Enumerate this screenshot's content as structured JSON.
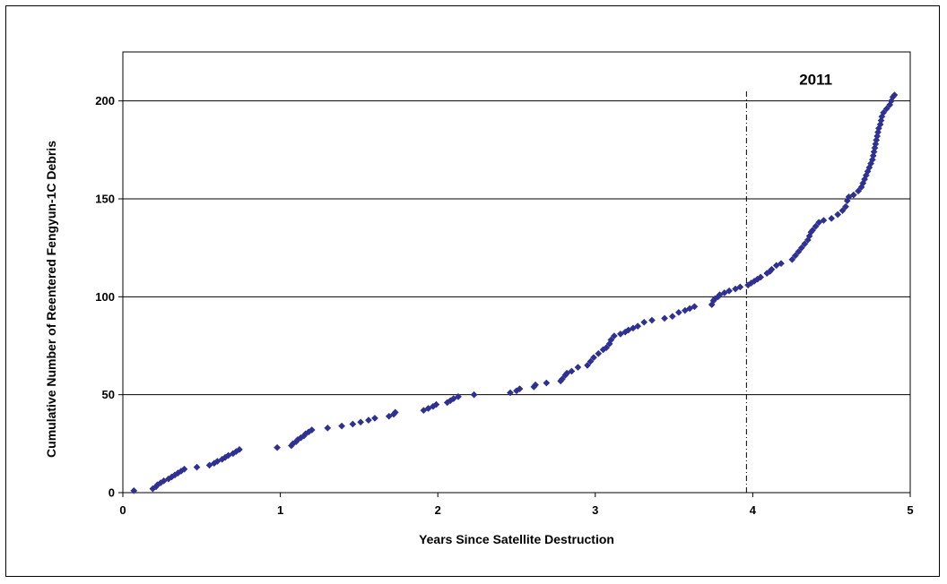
{
  "chart_data": {
    "type": "scatter",
    "title": "",
    "xlabel": "Years Since Satellite Destruction",
    "ylabel": "Cumulative Number of Reentered Fengyun-1C Debris",
    "xlim": [
      0,
      5
    ],
    "ylim": [
      0,
      225
    ],
    "x_ticks": [
      "0",
      "1",
      "2",
      "3",
      "4",
      "5"
    ],
    "y_ticks": [
      "0",
      "50",
      "100",
      "150",
      "200"
    ],
    "gridlines": "horizontal",
    "marker": "diamond",
    "marker_color": "#2e3192",
    "annotation": {
      "text": "2011",
      "x": 4.4,
      "y": 211
    },
    "reference_line": {
      "x": 3.96,
      "style": "dash-dot"
    },
    "series": [
      {
        "points": [
          [
            0.07,
            1
          ],
          [
            0.19,
            2
          ],
          [
            0.21,
            3
          ],
          [
            0.22,
            4
          ],
          [
            0.24,
            5
          ],
          [
            0.26,
            6
          ],
          [
            0.29,
            7
          ],
          [
            0.31,
            8
          ],
          [
            0.33,
            9
          ],
          [
            0.35,
            10
          ],
          [
            0.37,
            11
          ],
          [
            0.39,
            12
          ],
          [
            0.47,
            13
          ],
          [
            0.55,
            14
          ],
          [
            0.58,
            15
          ],
          [
            0.6,
            16
          ],
          [
            0.63,
            17
          ],
          [
            0.65,
            18
          ],
          [
            0.67,
            19
          ],
          [
            0.7,
            20
          ],
          [
            0.72,
            21
          ],
          [
            0.74,
            22
          ],
          [
            0.98,
            23
          ],
          [
            1.07,
            24
          ],
          [
            1.08,
            25
          ],
          [
            1.1,
            26
          ],
          [
            1.11,
            27
          ],
          [
            1.13,
            28
          ],
          [
            1.15,
            29
          ],
          [
            1.16,
            30
          ],
          [
            1.18,
            31
          ],
          [
            1.2,
            32
          ],
          [
            1.3,
            33
          ],
          [
            1.39,
            34
          ],
          [
            1.46,
            35
          ],
          [
            1.51,
            36
          ],
          [
            1.56,
            37
          ],
          [
            1.6,
            38
          ],
          [
            1.69,
            39
          ],
          [
            1.72,
            40
          ],
          [
            1.73,
            41
          ],
          [
            1.91,
            42
          ],
          [
            1.94,
            43
          ],
          [
            1.97,
            44
          ],
          [
            1.99,
            45
          ],
          [
            2.06,
            46
          ],
          [
            2.08,
            47
          ],
          [
            2.1,
            48
          ],
          [
            2.13,
            49
          ],
          [
            2.23,
            50
          ],
          [
            2.46,
            51
          ],
          [
            2.5,
            52
          ],
          [
            2.52,
            53
          ],
          [
            2.61,
            54
          ],
          [
            2.62,
            55
          ],
          [
            2.69,
            56
          ],
          [
            2.78,
            57
          ],
          [
            2.79,
            58
          ],
          [
            2.81,
            60
          ],
          [
            2.82,
            61
          ],
          [
            2.85,
            62
          ],
          [
            2.89,
            64
          ],
          [
            2.95,
            65
          ],
          [
            2.97,
            67
          ],
          [
            2.99,
            69
          ],
          [
            3.02,
            71
          ],
          [
            3.05,
            73
          ],
          [
            3.07,
            74
          ],
          [
            3.09,
            76
          ],
          [
            3.1,
            78
          ],
          [
            3.12,
            80
          ],
          [
            3.16,
            81
          ],
          [
            3.19,
            82
          ],
          [
            3.21,
            83
          ],
          [
            3.24,
            84
          ],
          [
            3.27,
            85
          ],
          [
            3.31,
            87
          ],
          [
            3.36,
            88
          ],
          [
            3.44,
            89
          ],
          [
            3.49,
            90
          ],
          [
            3.53,
            92
          ],
          [
            3.57,
            93
          ],
          [
            3.6,
            94
          ],
          [
            3.63,
            95
          ],
          [
            3.74,
            96
          ],
          [
            3.75,
            98
          ],
          [
            3.76,
            99
          ],
          [
            3.78,
            100
          ],
          [
            3.79,
            101
          ],
          [
            3.82,
            102
          ],
          [
            3.85,
            103
          ],
          [
            3.89,
            104
          ],
          [
            3.92,
            105
          ],
          [
            3.97,
            106
          ],
          [
            3.99,
            107
          ],
          [
            4.01,
            108
          ],
          [
            4.03,
            109
          ],
          [
            4.05,
            110
          ],
          [
            4.09,
            112
          ],
          [
            4.11,
            113
          ],
          [
            4.12,
            114
          ],
          [
            4.15,
            116
          ],
          [
            4.18,
            117
          ],
          [
            4.25,
            119
          ],
          [
            4.27,
            121
          ],
          [
            4.29,
            123
          ],
          [
            4.31,
            125
          ],
          [
            4.33,
            127
          ],
          [
            4.35,
            129
          ],
          [
            4.36,
            131
          ],
          [
            4.37,
            133
          ],
          [
            4.38,
            134
          ],
          [
            4.4,
            136
          ],
          [
            4.42,
            138
          ],
          [
            4.45,
            139
          ],
          [
            4.5,
            140
          ],
          [
            4.54,
            142
          ],
          [
            4.57,
            144
          ],
          [
            4.59,
            146
          ],
          [
            4.6,
            149
          ],
          [
            4.61,
            151
          ],
          [
            4.64,
            152
          ],
          [
            4.67,
            154
          ],
          [
            4.69,
            156
          ],
          [
            4.7,
            158
          ],
          [
            4.71,
            160
          ],
          [
            4.72,
            162
          ],
          [
            4.73,
            164
          ],
          [
            4.74,
            166
          ],
          [
            4.75,
            168
          ],
          [
            4.76,
            170
          ],
          [
            4.765,
            172
          ],
          [
            4.77,
            174
          ],
          [
            4.775,
            176
          ],
          [
            4.78,
            178
          ],
          [
            4.785,
            180
          ],
          [
            4.79,
            182
          ],
          [
            4.795,
            184
          ],
          [
            4.8,
            186
          ],
          [
            4.81,
            188
          ],
          [
            4.815,
            190
          ],
          [
            4.82,
            192
          ],
          [
            4.83,
            194
          ],
          [
            4.85,
            196
          ],
          [
            4.87,
            198
          ],
          [
            4.88,
            200
          ],
          [
            4.89,
            202
          ],
          [
            4.9,
            203
          ]
        ]
      }
    ]
  }
}
